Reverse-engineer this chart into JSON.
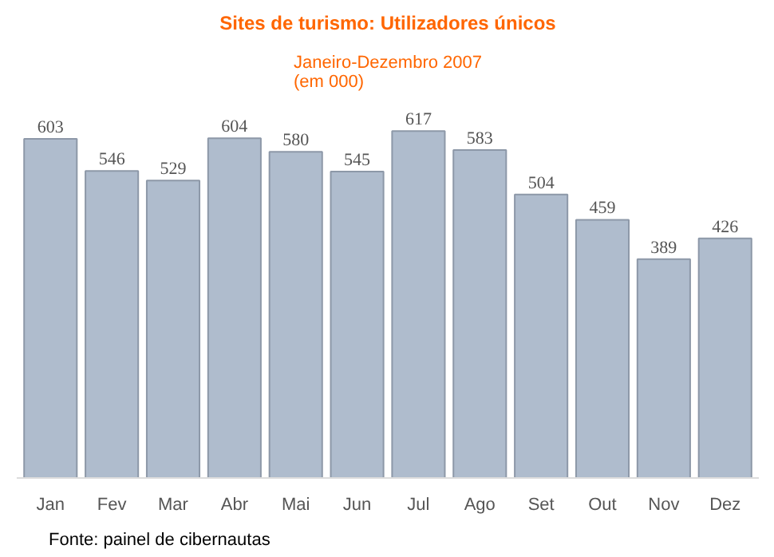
{
  "chart_data": {
    "type": "bar",
    "title": "Sites de turismo: Utilizadores únicos",
    "subtitle": "Janeiro-Dezembro 2007\n(em 000)",
    "categories": [
      "Jan",
      "Fev",
      "Mar",
      "Abr",
      "Mai",
      "Jun",
      "Jul",
      "Ago",
      "Set",
      "Out",
      "Nov",
      "Dez"
    ],
    "values": [
      603,
      546,
      529,
      604,
      580,
      545,
      617,
      583,
      504,
      459,
      389,
      426
    ],
    "color": "#afbccd",
    "data_labels": true,
    "tick_labels": "x",
    "grid": false,
    "annotations": [
      "Fonte: painel de cibernautas"
    ]
  }
}
